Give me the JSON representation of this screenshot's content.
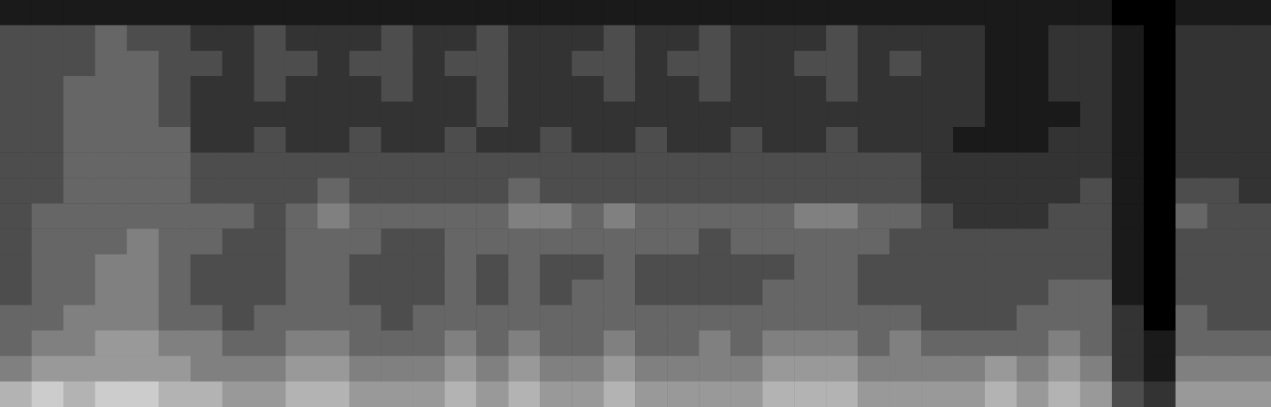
{
  "chart_data": {
    "type": "heatmap",
    "tick_labels": false,
    "color": "#ffffff",
    "zlim": [
      0,
      10
    ],
    "cells": [
      [
        1,
        1,
        1,
        1,
        1,
        1,
        1,
        1,
        1,
        1,
        1,
        1,
        1,
        1,
        1,
        1,
        1,
        1,
        1,
        1,
        1,
        1,
        1,
        1,
        1,
        1,
        1,
        1,
        1,
        1,
        1,
        1,
        1,
        1,
        1,
        0,
        0,
        1,
        1,
        1
      ],
      [
        3,
        3,
        3,
        4,
        3,
        3,
        2,
        2,
        3,
        2,
        2,
        2,
        3,
        2,
        2,
        3,
        2,
        2,
        2,
        3,
        2,
        2,
        3,
        2,
        2,
        2,
        3,
        2,
        2,
        2,
        2,
        1,
        1,
        2,
        2,
        1,
        0,
        2,
        2,
        2
      ],
      [
        3,
        3,
        3,
        4,
        4,
        3,
        3,
        2,
        3,
        3,
        2,
        3,
        3,
        2,
        3,
        3,
        2,
        2,
        3,
        3,
        2,
        3,
        3,
        2,
        2,
        3,
        3,
        2,
        3,
        2,
        2,
        1,
        1,
        2,
        2,
        1,
        0,
        2,
        2,
        2
      ],
      [
        3,
        3,
        4,
        4,
        4,
        3,
        2,
        2,
        3,
        2,
        2,
        2,
        3,
        2,
        2,
        3,
        2,
        2,
        2,
        3,
        2,
        2,
        3,
        2,
        2,
        2,
        3,
        2,
        2,
        2,
        2,
        1,
        1,
        2,
        2,
        1,
        0,
        2,
        2,
        2
      ],
      [
        3,
        3,
        4,
        4,
        4,
        3,
        2,
        2,
        2,
        2,
        2,
        2,
        2,
        2,
        2,
        3,
        2,
        2,
        2,
        2,
        2,
        2,
        2,
        2,
        2,
        2,
        2,
        2,
        2,
        2,
        2,
        1,
        1,
        1,
        2,
        1,
        0,
        2,
        2,
        2
      ],
      [
        3,
        3,
        4,
        4,
        4,
        4,
        2,
        2,
        3,
        2,
        2,
        3,
        2,
        2,
        3,
        2,
        2,
        3,
        2,
        2,
        3,
        2,
        2,
        3,
        2,
        2,
        3,
        2,
        2,
        2,
        1,
        1,
        1,
        2,
        2,
        1,
        0,
        2,
        2,
        2
      ],
      [
        3,
        3,
        4,
        4,
        4,
        4,
        3,
        3,
        3,
        3,
        3,
        3,
        3,
        3,
        3,
        3,
        3,
        3,
        3,
        3,
        3,
        3,
        3,
        3,
        3,
        3,
        3,
        3,
        3,
        2,
        2,
        2,
        2,
        2,
        2,
        1,
        0,
        2,
        2,
        2
      ],
      [
        3,
        3,
        4,
        4,
        4,
        4,
        3,
        3,
        3,
        3,
        4,
        3,
        3,
        3,
        3,
        3,
        4,
        3,
        3,
        3,
        3,
        3,
        3,
        3,
        3,
        3,
        3,
        3,
        3,
        2,
        2,
        2,
        2,
        2,
        3,
        1,
        0,
        3,
        3,
        2
      ],
      [
        3,
        4,
        4,
        4,
        4,
        4,
        4,
        4,
        3,
        4,
        5,
        4,
        4,
        4,
        4,
        4,
        5,
        5,
        4,
        5,
        4,
        4,
        4,
        4,
        4,
        5,
        5,
        4,
        4,
        3,
        2,
        2,
        2,
        3,
        3,
        1,
        0,
        4,
        3,
        3
      ],
      [
        3,
        4,
        4,
        4,
        5,
        4,
        4,
        3,
        3,
        4,
        4,
        4,
        3,
        3,
        4,
        4,
        4,
        4,
        4,
        4,
        4,
        4,
        3,
        4,
        4,
        4,
        4,
        4,
        3,
        3,
        3,
        3,
        3,
        3,
        3,
        1,
        0,
        3,
        3,
        3
      ],
      [
        3,
        4,
        4,
        5,
        5,
        4,
        3,
        3,
        3,
        4,
        4,
        3,
        3,
        3,
        4,
        3,
        4,
        3,
        3,
        4,
        3,
        3,
        3,
        3,
        3,
        4,
        4,
        3,
        3,
        3,
        3,
        3,
        3,
        3,
        3,
        1,
        0,
        3,
        3,
        3
      ],
      [
        3,
        4,
        4,
        5,
        5,
        4,
        3,
        3,
        3,
        4,
        4,
        3,
        3,
        3,
        4,
        3,
        4,
        3,
        4,
        4,
        3,
        3,
        3,
        3,
        4,
        4,
        4,
        3,
        3,
        3,
        3,
        3,
        3,
        4,
        4,
        1,
        0,
        3,
        3,
        3
      ],
      [
        4,
        4,
        5,
        5,
        5,
        4,
        4,
        3,
        4,
        4,
        4,
        4,
        3,
        4,
        4,
        4,
        4,
        4,
        4,
        4,
        4,
        4,
        4,
        4,
        4,
        4,
        4,
        4,
        4,
        3,
        3,
        3,
        4,
        4,
        4,
        2,
        0,
        4,
        3,
        3
      ],
      [
        4,
        5,
        5,
        6,
        6,
        5,
        5,
        4,
        4,
        5,
        5,
        4,
        4,
        4,
        5,
        4,
        5,
        4,
        4,
        5,
        4,
        4,
        5,
        4,
        5,
        5,
        5,
        4,
        5,
        4,
        4,
        4,
        4,
        5,
        4,
        2,
        1,
        4,
        4,
        4
      ],
      [
        5,
        6,
        6,
        6,
        6,
        6,
        5,
        5,
        5,
        6,
        6,
        5,
        5,
        5,
        6,
        5,
        6,
        5,
        5,
        6,
        5,
        5,
        5,
        5,
        6,
        6,
        6,
        5,
        5,
        5,
        5,
        6,
        5,
        6,
        5,
        2,
        1,
        5,
        5,
        5
      ],
      [
        7,
        8,
        7,
        8,
        8,
        7,
        7,
        6,
        6,
        7,
        7,
        6,
        6,
        6,
        7,
        6,
        7,
        6,
        6,
        7,
        6,
        6,
        6,
        6,
        7,
        7,
        7,
        6,
        6,
        6,
        6,
        7,
        6,
        7,
        6,
        3,
        2,
        6,
        6,
        6
      ]
    ]
  }
}
